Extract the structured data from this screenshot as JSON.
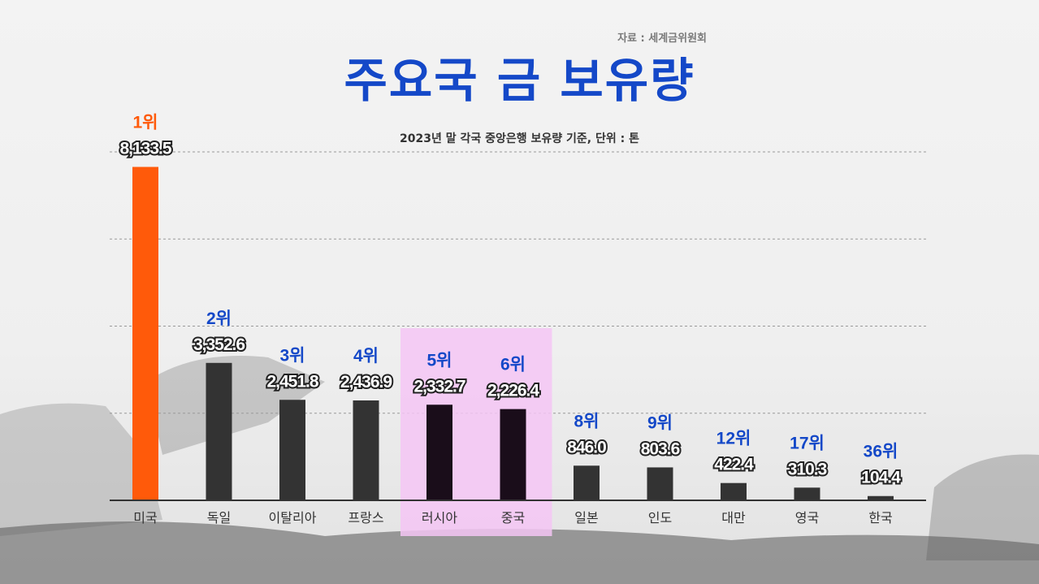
{
  "source": "자료 : 세계금위원회",
  "title": "주요국 금 보유량",
  "subtitle": "2023년 말 각국 중앙은행 보유량 기준, 단위 : 톤",
  "colors": {
    "title": "#1448c8",
    "top_bar": "#ff5a0a",
    "bar": "#333333",
    "highlight_bar": "#1a0d1a",
    "highlight_bg": "#f4c6f4",
    "rank_top": "#ff5a0a",
    "rank": "#1448c8"
  },
  "chart_data": {
    "type": "bar",
    "categories": [
      "미국",
      "독일",
      "이탈리아",
      "프랑스",
      "러시아",
      "중국",
      "일본",
      "인도",
      "대만",
      "영국",
      "한국"
    ],
    "values": [
      8133.5,
      3352.6,
      2451.8,
      2436.9,
      2332.7,
      2226.4,
      846.0,
      803.6,
      422.4,
      310.3,
      104.4
    ],
    "value_labels": [
      "8,133.5",
      "3,352.6",
      "2,451.8",
      "2,436.9",
      "2,332.7",
      "2,226.4",
      "846.0",
      "803.6",
      "422.4",
      "310.3",
      "104.4"
    ],
    "ranks": [
      "1위",
      "2위",
      "3위",
      "4위",
      "5위",
      "6위",
      "8위",
      "9위",
      "12위",
      "17위",
      "36위"
    ],
    "highlighted": [
      "러시아",
      "중국"
    ],
    "ylim": [
      0,
      8500
    ],
    "grid": true
  }
}
